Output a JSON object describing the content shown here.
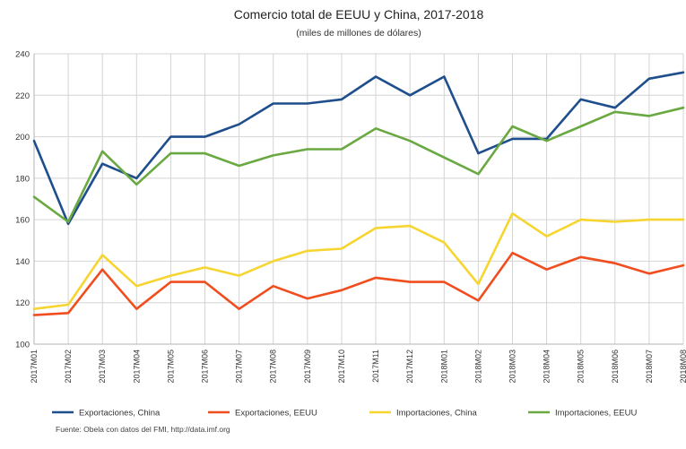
{
  "chart_data": {
    "type": "line",
    "title": "Comercio total de EEUU y China, 2017-2018",
    "subtitle": "(miles de millones de dólares)",
    "categories": [
      "2017M01",
      "2017M02",
      "2017M03",
      "2017M04",
      "2017M05",
      "2017M06",
      "2017M07",
      "2017M08",
      "2017M09",
      "2017M10",
      "2017M11",
      "2017M12",
      "2018M01",
      "2018M02",
      "2018M03",
      "2018M04",
      "2018M05",
      "2018M06",
      "2018M07",
      "2018M08"
    ],
    "ylim": [
      100,
      240
    ],
    "yticks": [
      100,
      120,
      140,
      160,
      180,
      200,
      220,
      240
    ],
    "grid": true,
    "legend_position": "bottom",
    "series": [
      {
        "name": "Exportaciones, China",
        "color": "#1f4e8c",
        "values": [
          198,
          158,
          187,
          180,
          200,
          200,
          206,
          216,
          216,
          218,
          229,
          220,
          229,
          192,
          199,
          199,
          218,
          214,
          228,
          231
        ]
      },
      {
        "name": "Exportaciones, EEUU",
        "color": "#f04e1f",
        "values": [
          114,
          115,
          136,
          117,
          130,
          130,
          117,
          128,
          122,
          126,
          132,
          130,
          130,
          121,
          144,
          136,
          142,
          139,
          134,
          138
        ]
      },
      {
        "name": "Importaciones, China",
        "color": "#f7d531",
        "values": [
          117,
          119,
          143,
          128,
          133,
          137,
          133,
          140,
          145,
          146,
          156,
          157,
          149,
          129,
          163,
          152,
          160,
          159,
          160,
          160
        ]
      },
      {
        "name": "Importaciones, EEUU",
        "color": "#6aa842",
        "values": [
          171,
          159,
          193,
          177,
          192,
          192,
          186,
          191,
          194,
          194,
          204,
          198,
          190,
          182,
          205,
          198,
          205,
          212,
          210,
          214
        ]
      }
    ],
    "source": "Fuente: Obela con datos del FMI, http://data.imf.org"
  }
}
